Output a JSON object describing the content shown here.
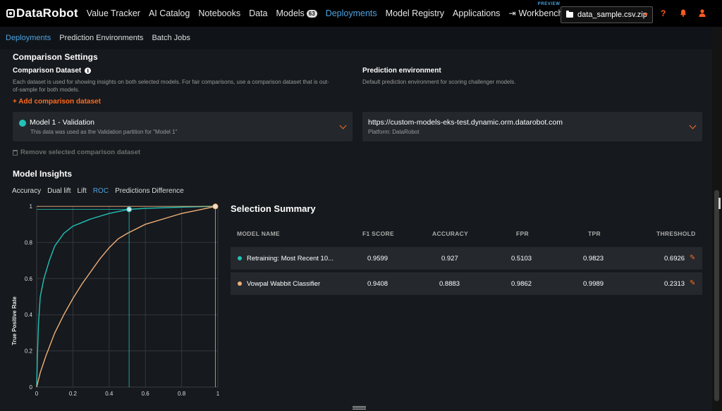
{
  "nav": {
    "logo": "DataRobot",
    "items": [
      {
        "label": "Value Tracker"
      },
      {
        "label": "AI Catalog"
      },
      {
        "label": "Notebooks"
      },
      {
        "label": "Data"
      },
      {
        "label": "Models",
        "badge": "63"
      },
      {
        "label": "Deployments",
        "active": true
      },
      {
        "label": "Model Registry"
      },
      {
        "label": "Applications"
      },
      {
        "label": "Workbench",
        "tag": "PREVIEW"
      }
    ],
    "file_select": "data_sample.csv.zip",
    "help_icon": "?",
    "accent_color": "#ff5a1f"
  },
  "subnav": {
    "items": [
      "Deployments",
      "Prediction Environments",
      "Batch Jobs"
    ]
  },
  "comparison": {
    "title": "Comparison Settings",
    "dataset_label": "Comparison Dataset",
    "dataset_desc_1": "Each dataset is used for showing insights on both selected models. For fair comparisons, use a comparison dataset that is out-",
    "dataset_desc_2": "of-sample for both models.",
    "add_link": "+ Add comparison dataset",
    "selected_title": "Model 1 - Validation",
    "selected_sub": "This data was used as the Validation partition for \"Model 1\"",
    "remove_link": "Remove selected comparison dataset",
    "env_label": "Prediction environment",
    "env_desc": "Default prediction environment for scoring challenger models.",
    "env_url": "https://custom-models-eks-test.dynamic.orm.datarobot.com",
    "env_platform": "Platform: DataRobot"
  },
  "insights": {
    "title": "Model Insights",
    "tabs": [
      "Accuracy",
      "Dual lift",
      "Lift",
      "ROC",
      "Predictions Difference"
    ],
    "active_tab": "ROC"
  },
  "chart_data": {
    "type": "line",
    "ylabel": "True Positive Rate",
    "xlabel": "",
    "xlim": [
      0,
      1
    ],
    "ylim": [
      0,
      1
    ],
    "x_ticks": [
      "0",
      "0.2",
      "0.4",
      "0.6",
      "0.8",
      "1"
    ],
    "y_ticks": [
      "0",
      "0.2",
      "0.4",
      "0.6",
      "0.8",
      "1"
    ],
    "grid": true,
    "series": [
      {
        "color": "#21c2b8",
        "points": [
          [
            0,
            0
          ],
          [
            0.005,
            0.2
          ],
          [
            0.01,
            0.35
          ],
          [
            0.02,
            0.5
          ],
          [
            0.04,
            0.6
          ],
          [
            0.07,
            0.7
          ],
          [
            0.1,
            0.78
          ],
          [
            0.15,
            0.85
          ],
          [
            0.2,
            0.89
          ],
          [
            0.3,
            0.93
          ],
          [
            0.4,
            0.96
          ],
          [
            0.5103,
            0.9823
          ],
          [
            0.6,
            0.988
          ],
          [
            0.8,
            0.995
          ],
          [
            1,
            1
          ]
        ],
        "marker": {
          "x": 0.5103,
          "y": 0.9823
        }
      },
      {
        "color": "#f0b07a",
        "points": [
          [
            0,
            0
          ],
          [
            0.02,
            0.08
          ],
          [
            0.05,
            0.17
          ],
          [
            0.1,
            0.3
          ],
          [
            0.15,
            0.4
          ],
          [
            0.2,
            0.49
          ],
          [
            0.25,
            0.57
          ],
          [
            0.3,
            0.64
          ],
          [
            0.35,
            0.71
          ],
          [
            0.4,
            0.77
          ],
          [
            0.45,
            0.82
          ],
          [
            0.5,
            0.85
          ],
          [
            0.6,
            0.9
          ],
          [
            0.7,
            0.93
          ],
          [
            0.8,
            0.96
          ],
          [
            0.9,
            0.98
          ],
          [
            0.9862,
            0.9989
          ],
          [
            1,
            1
          ]
        ],
        "marker": {
          "x": 0.9862,
          "y": 0.9989
        }
      }
    ]
  },
  "summary": {
    "title": "Selection Summary",
    "columns": [
      "MODEL NAME",
      "F1 SCORE",
      "ACCURACY",
      "FPR",
      "TPR",
      "THRESHOLD"
    ],
    "rows": [
      {
        "color": "#21c2b8",
        "name": "Retraining: Most Recent 10...",
        "f1": "0.9599",
        "accuracy": "0.927",
        "fpr": "0.5103",
        "tpr": "0.9823",
        "threshold": "0.6926"
      },
      {
        "color": "#f0b07a",
        "name": "Vowpal Wabbit Classifier",
        "f1": "0.9408",
        "accuracy": "0.8883",
        "fpr": "0.9862",
        "tpr": "0.9989",
        "threshold": "0.2313"
      }
    ]
  }
}
